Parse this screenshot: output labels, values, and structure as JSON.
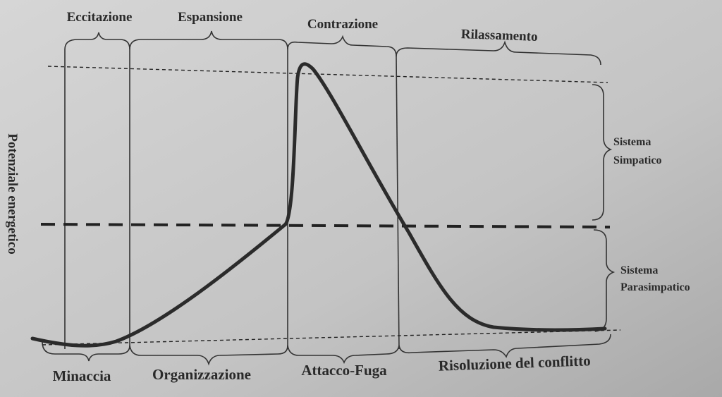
{
  "top_phases": [
    "Eccitazione",
    "Espansione",
    "Contrazione",
    "Rilassamento"
  ],
  "bottom_phases": [
    "Minaccia",
    "Organizzazione",
    "Attacco-Fuga",
    "Risoluzione del conflitto"
  ],
  "y_axis_label": "Potenziale energetico",
  "systems": [
    [
      "Sistema",
      "Simpatico"
    ],
    [
      "Sistema",
      "Parasimpatico"
    ]
  ]
}
